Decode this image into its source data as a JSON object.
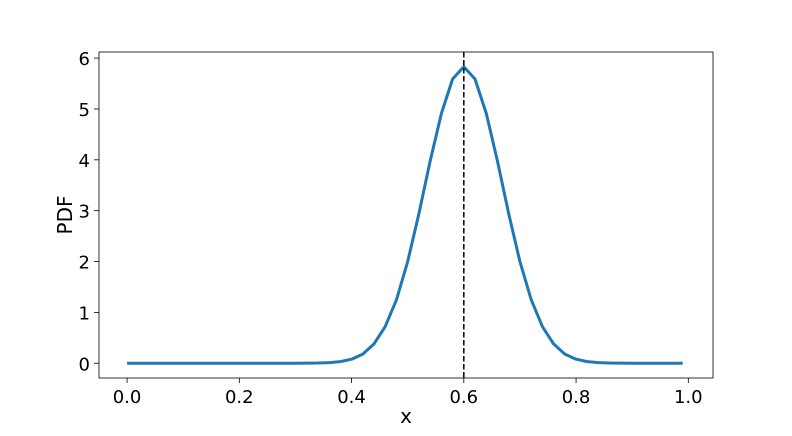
{
  "chart_data": {
    "type": "line",
    "title": "",
    "xlabel": "x",
    "ylabel": "PDF",
    "xlim": [
      -0.05,
      1.044
    ],
    "ylim": [
      -0.29,
      6.12
    ],
    "grid": false,
    "xticks": [
      0.0,
      0.2,
      0.4,
      0.6,
      0.8,
      1.0
    ],
    "xtick_labels": [
      "0.0",
      "0.2",
      "0.4",
      "0.6",
      "0.8",
      "1.0"
    ],
    "yticks": [
      0,
      1,
      2,
      3,
      4,
      5,
      6
    ],
    "ytick_labels": [
      "0",
      "1",
      "2",
      "3",
      "4",
      "5",
      "6"
    ],
    "series": [
      {
        "color": "#1f77b4",
        "x": [
          0.0,
          0.1,
          0.2,
          0.3,
          0.34,
          0.36,
          0.38,
          0.4,
          0.42,
          0.44,
          0.46,
          0.48,
          0.5,
          0.52,
          0.54,
          0.56,
          0.58,
          0.6,
          0.62,
          0.64,
          0.66,
          0.68,
          0.7,
          0.72,
          0.74,
          0.76,
          0.78,
          0.8,
          0.82,
          0.84,
          0.86,
          0.9,
          0.99
        ],
        "y": [
          0,
          0,
          0,
          0.001,
          0.004,
          0.012,
          0.033,
          0.08,
          0.18,
          0.38,
          0.72,
          1.25,
          2.0,
          2.94,
          3.97,
          4.91,
          5.59,
          5.83,
          5.59,
          4.91,
          3.97,
          2.94,
          2.0,
          1.25,
          0.72,
          0.38,
          0.18,
          0.08,
          0.033,
          0.012,
          0.004,
          0.0,
          0.0
        ]
      }
    ],
    "vline": {
      "x": 0.6,
      "style": "dashed",
      "color": "#000000"
    }
  }
}
